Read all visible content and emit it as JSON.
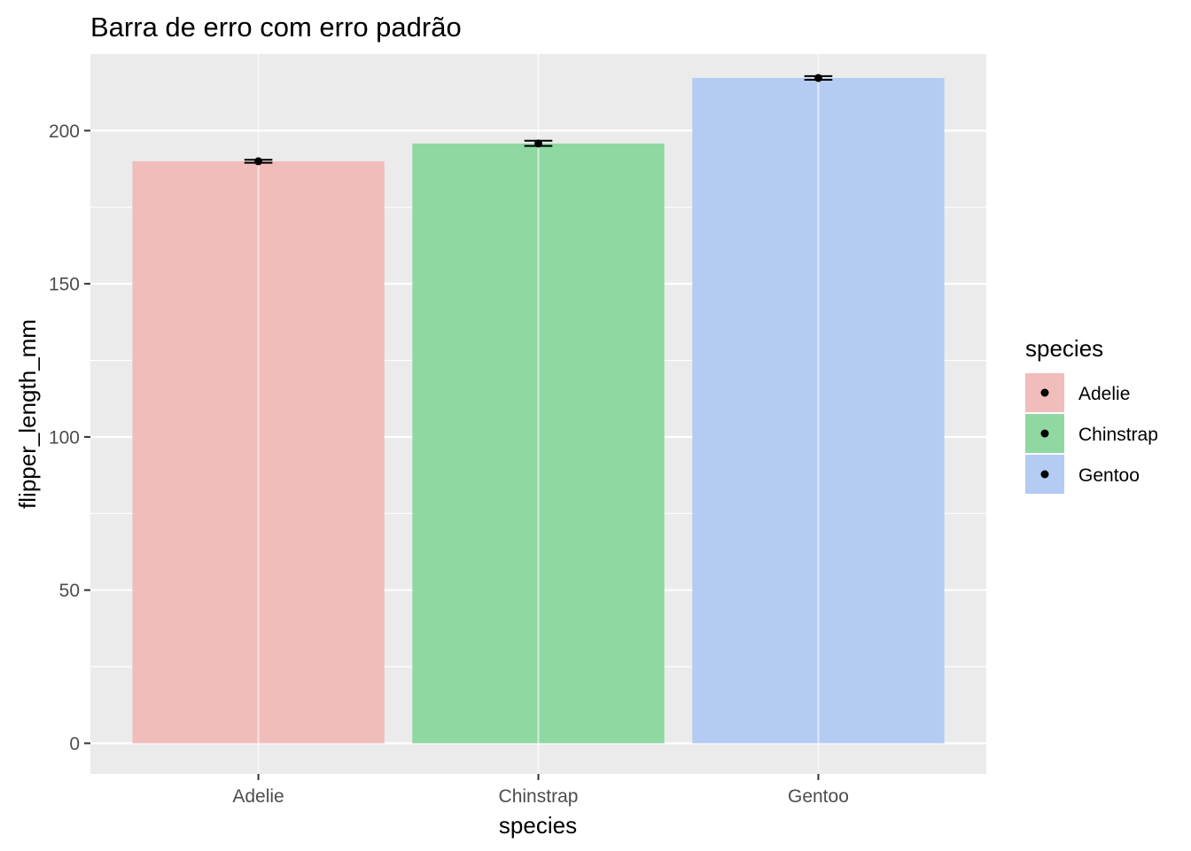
{
  "chart_data": {
    "type": "bar",
    "title": "Barra de erro com erro padrão",
    "xlabel": "species",
    "ylabel": "flipper_length_mm",
    "categories": [
      "Adelie",
      "Chinstrap",
      "Gentoo"
    ],
    "values": [
      190.0,
      195.8,
      217.2
    ],
    "error_bars": [
      {
        "category": "Adelie",
        "mean": 190.0,
        "lower": 189.5,
        "upper": 190.5
      },
      {
        "category": "Chinstrap",
        "mean": 195.8,
        "lower": 195.0,
        "upper": 196.7
      },
      {
        "category": "Gentoo",
        "mean": 217.2,
        "lower": 216.6,
        "upper": 217.8
      }
    ],
    "ylim": [
      -10,
      225
    ],
    "yticks": [
      0,
      50,
      100,
      150,
      200
    ],
    "grid": true,
    "legend": {
      "title": "species",
      "position": "right",
      "entries": [
        "Adelie",
        "Chinstrap",
        "Gentoo"
      ]
    },
    "colors": {
      "Adelie": "#f0bdbb",
      "Chinstrap": "#8fd8a2",
      "Gentoo": "#b4cbf3",
      "panel": "#ebebeb",
      "grid": "#ffffff",
      "point": "#000000"
    }
  }
}
